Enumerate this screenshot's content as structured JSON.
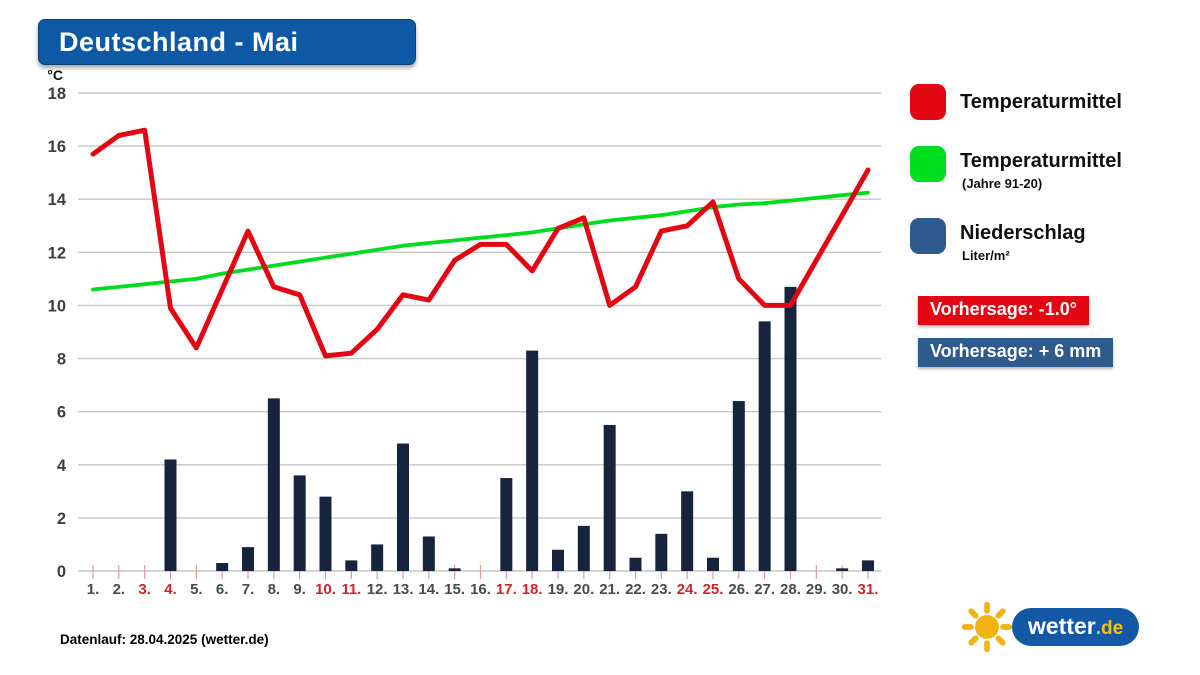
{
  "title": "Deutschland - Mai",
  "y_axis": {
    "unit": "°C",
    "ticks": [
      18,
      16,
      14,
      12,
      10,
      8,
      6,
      4,
      2,
      0
    ]
  },
  "chart_data": {
    "type": "combo-line-bar",
    "x": [
      1,
      2,
      3,
      4,
      5,
      6,
      7,
      8,
      9,
      10,
      11,
      12,
      13,
      14,
      15,
      16,
      17,
      18,
      19,
      20,
      21,
      22,
      23,
      24,
      25,
      26,
      27,
      28,
      29,
      30,
      31
    ],
    "x_labels": [
      "1.",
      "2.",
      "3.",
      "4.",
      "5.",
      "6.",
      "7.",
      "8.",
      "9.",
      "10.",
      "11.",
      "12.",
      "13.",
      "14.",
      "15.",
      "16.",
      "17.",
      "18.",
      "19.",
      "20.",
      "21.",
      "22.",
      "23.",
      "24.",
      "25.",
      "26.",
      "27.",
      "28.",
      "29.",
      "30.",
      "31."
    ],
    "weekend_days": [
      3,
      4,
      10,
      11,
      17,
      18,
      24,
      25,
      31
    ],
    "ylim": [
      0,
      18
    ],
    "grid": true,
    "colors": {
      "grid": "#c7c7c7",
      "tick": "#e59999",
      "weekday_label": "#4a4a4a",
      "weekend_label": "#d2232a",
      "y_label": "#3e3e3e"
    },
    "series": [
      {
        "name": "Temperaturmittel",
        "type": "line",
        "color": "#e30613",
        "values": [
          15.7,
          16.4,
          16.6,
          9.9,
          8.4,
          10.6,
          12.8,
          10.7,
          10.4,
          8.1,
          8.2,
          9.1,
          10.4,
          10.2,
          11.7,
          12.3,
          12.3,
          11.3,
          12.9,
          13.3,
          10.0,
          10.7,
          12.8,
          13.0,
          13.9,
          11.0,
          10.0,
          10.0,
          11.7,
          13.4,
          15.1
        ]
      },
      {
        "name": "Temperaturmittel (Jahre 91-20)",
        "type": "line",
        "color": "#00dd1e",
        "values": [
          10.6,
          10.7,
          10.8,
          10.9,
          11.0,
          11.2,
          11.35,
          11.5,
          11.65,
          11.8,
          11.95,
          12.1,
          12.25,
          12.35,
          12.45,
          12.55,
          12.65,
          12.75,
          12.9,
          13.05,
          13.2,
          13.3,
          13.4,
          13.55,
          13.7,
          13.8,
          13.85,
          13.95,
          14.05,
          14.15,
          14.25
        ]
      },
      {
        "name": "Niederschlag (Liter/m²)",
        "type": "bar",
        "color": "#16243e",
        "values": [
          0,
          0,
          0,
          4.2,
          0,
          0.3,
          0.9,
          6.5,
          3.6,
          2.8,
          0.4,
          1.0,
          4.8,
          1.3,
          0.1,
          0,
          3.5,
          8.3,
          0.8,
          1.7,
          5.5,
          0.5,
          1.4,
          3.0,
          0.5,
          6.4,
          9.4,
          10.7,
          0,
          0.1,
          0.4
        ]
      }
    ]
  },
  "legend": {
    "items": [
      {
        "label": "Temperaturmittel",
        "sublabel": "",
        "color": "#e30613"
      },
      {
        "label": "Temperaturmittel",
        "sublabel": "(Jahre 91-20)",
        "color": "#00dd1e"
      },
      {
        "label": "Niederschlag",
        "sublabel": "Liter/m²",
        "color": "#2e5a8e"
      }
    ]
  },
  "badges": {
    "temperature": {
      "text": "Vorhersage: -1.0°",
      "color": "#e30613"
    },
    "precipitation": {
      "text": "Vorhersage: + 6 mm",
      "color": "#2e5a8e"
    }
  },
  "footer": {
    "datenlauf": "Datenlauf: 28.04.2025 (wetter.de)"
  },
  "logo": {
    "main": "wetter",
    "tld": ".de"
  }
}
